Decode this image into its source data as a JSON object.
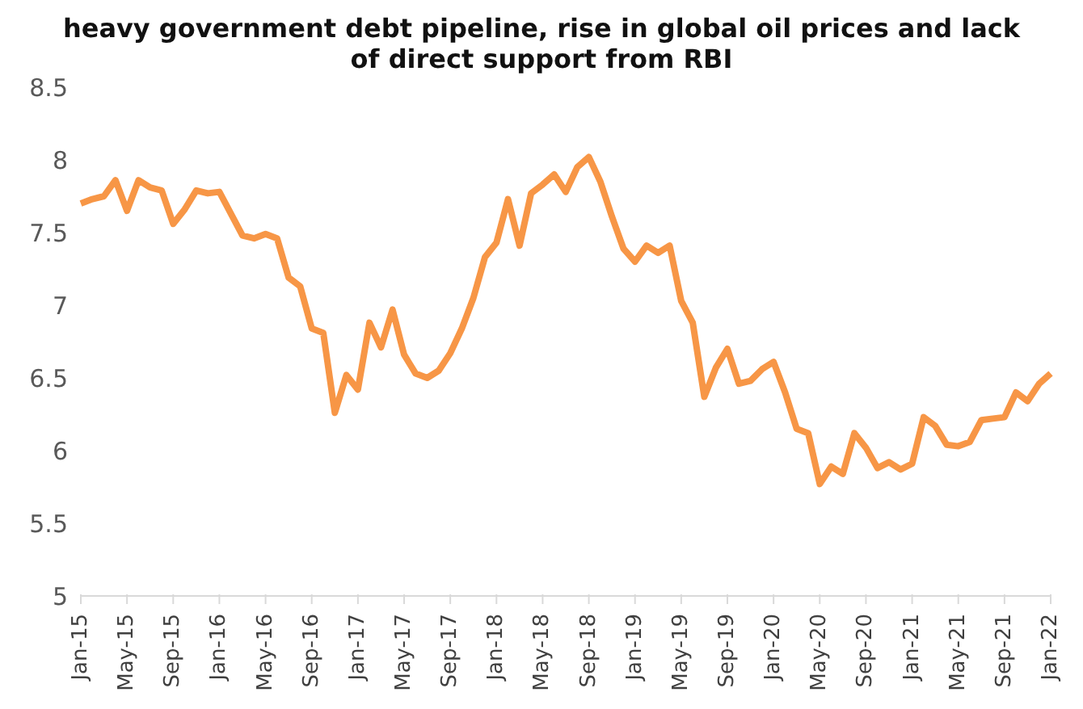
{
  "chart_data": {
    "type": "line",
    "title": "heavy government debt pipeline, rise in global oil prices and lack of direct support from RBI",
    "categories": [
      "Jan-15",
      null,
      null,
      null,
      "May-15",
      null,
      null,
      null,
      "Sep-15",
      null,
      null,
      null,
      "Jan-16",
      null,
      null,
      null,
      "May-16",
      null,
      null,
      null,
      "Sep-16",
      null,
      null,
      null,
      "Jan-17",
      null,
      null,
      null,
      "May-17",
      null,
      null,
      null,
      "Sep-17",
      null,
      null,
      null,
      "Jan-18",
      null,
      null,
      null,
      "May-18",
      null,
      null,
      null,
      "Sep-18",
      null,
      null,
      null,
      "Jan-19",
      null,
      null,
      null,
      "May-19",
      null,
      null,
      null,
      "Sep-19",
      null,
      null,
      null,
      "Jan-20",
      null,
      null,
      null,
      "May-20",
      null,
      null,
      null,
      "Sep-20",
      null,
      null,
      null,
      "Jan-21",
      null,
      null,
      null,
      "May-21",
      null,
      null,
      null,
      "Sep-21",
      null,
      null,
      null,
      "Jan-22"
    ],
    "series": [
      {
        "color": "#f79646",
        "values": [
          7.7,
          7.73,
          7.75,
          7.86,
          7.65,
          7.86,
          7.81,
          7.79,
          7.56,
          7.66,
          7.79,
          7.77,
          7.78,
          7.63,
          7.48,
          7.46,
          7.49,
          7.46,
          7.19,
          7.13,
          6.84,
          6.81,
          6.26,
          6.52,
          6.42,
          6.88,
          6.71,
          6.97,
          6.66,
          6.53,
          6.5,
          6.55,
          6.67,
          6.84,
          7.05,
          7.33,
          7.43,
          7.73,
          7.41,
          7.77,
          7.83,
          7.9,
          7.78,
          7.95,
          8.02,
          7.85,
          7.61,
          7.39,
          7.3,
          7.41,
          7.36,
          7.41,
          7.03,
          6.88,
          6.37,
          6.57,
          6.7,
          6.46,
          6.48,
          6.56,
          6.61,
          6.4,
          6.15,
          6.12,
          5.77,
          5.89,
          5.84,
          6.12,
          6.02,
          5.88,
          5.92,
          5.87,
          5.91,
          6.23,
          6.17,
          6.04,
          6.03,
          6.06,
          6.21,
          6.22,
          6.23,
          6.4,
          6.34,
          6.46,
          6.53
        ]
      }
    ],
    "ylim": [
      5,
      8.5
    ],
    "yticks": [
      5,
      5.5,
      6,
      6.5,
      7,
      7.5,
      8,
      8.5
    ],
    "grid": false,
    "legend": false,
    "marker": "none",
    "line_style": "solid"
  }
}
